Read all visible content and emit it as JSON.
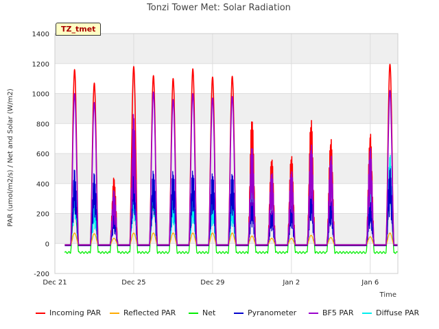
{
  "chart_data": {
    "type": "line",
    "title": "Tonzi Tower Met: Solar Radiation",
    "xlabel": "Time",
    "ylabel": "PAR (umol/m2/s) / Net and Solar (W/m2)",
    "ylim": [
      -200,
      1400
    ],
    "yticks": [
      -200,
      0,
      200,
      400,
      600,
      800,
      1000,
      1200,
      1400
    ],
    "xlim": [
      0,
      17.4
    ],
    "xticks": [
      {
        "x": 0,
        "label": "Dec 21"
      },
      {
        "x": 4,
        "label": "Dec 25"
      },
      {
        "x": 8,
        "label": "Dec 29"
      },
      {
        "x": 12,
        "label": "Jan 2"
      },
      {
        "x": 16,
        "label": "Jan 6"
      }
    ],
    "tag": "TZ_tmet",
    "day_offset": 0.5,
    "days": [
      {
        "day": 0,
        "incoming": 1160,
        "reflected": 70,
        "net": 230,
        "pyranometer": 500,
        "bf5": 1000,
        "diffuse": 410
      },
      {
        "day": 1,
        "incoming": 1070,
        "reflected": 65,
        "net": 250,
        "pyranometer": 475,
        "bf5": 940,
        "diffuse": 260
      },
      {
        "day": 2,
        "incoming": 445,
        "reflected": 35,
        "net": 170,
        "pyranometer": 200,
        "bf5": 360,
        "diffuse": 360
      },
      {
        "day": 3,
        "incoming": 1180,
        "reflected": 70,
        "net": 300,
        "pyranometer": 520,
        "bf5": 880,
        "diffuse": 400
      },
      {
        "day": 4,
        "incoming": 1120,
        "reflected": 70,
        "net": 260,
        "pyranometer": 495,
        "bf5": 1010,
        "diffuse": 450
      },
      {
        "day": 5,
        "incoming": 1100,
        "reflected": 70,
        "net": 275,
        "pyranometer": 495,
        "bf5": 960,
        "diffuse": 300
      },
      {
        "day": 6,
        "incoming": 1165,
        "reflected": 70,
        "net": 280,
        "pyranometer": 500,
        "bf5": 1000,
        "diffuse": 310
      },
      {
        "day": 7,
        "incoming": 1110,
        "reflected": 70,
        "net": 275,
        "pyranometer": 485,
        "bf5": 970,
        "diffuse": 290
      },
      {
        "day": 8,
        "incoming": 1115,
        "reflected": 70,
        "net": 280,
        "pyranometer": 485,
        "bf5": 980,
        "diffuse": 290
      },
      {
        "day": 9,
        "incoming": 860,
        "reflected": 50,
        "net": 250,
        "pyranometer": 310,
        "bf5": 670,
        "diffuse": 490
      },
      {
        "day": 10,
        "incoming": 585,
        "reflected": 35,
        "net": 200,
        "pyranometer": 230,
        "bf5": 490,
        "diffuse": 460
      },
      {
        "day": 11,
        "incoming": 605,
        "reflected": 35,
        "net": 180,
        "pyranometer": 260,
        "bf5": 500,
        "diffuse": 430
      },
      {
        "day": 12,
        "incoming": 850,
        "reflected": 55,
        "net": 270,
        "pyranometer": 360,
        "bf5": 680,
        "diffuse": 580
      },
      {
        "day": 13,
        "incoming": 715,
        "reflected": 40,
        "net": 220,
        "pyranometer": 290,
        "bf5": 600,
        "diffuse": 520
      },
      {
        "day": 15,
        "incoming": 745,
        "reflected": 45,
        "net": 240,
        "pyranometer": 280,
        "bf5": 650,
        "diffuse": 435
      },
      {
        "day": 16,
        "incoming": 1195,
        "reflected": 70,
        "net": 290,
        "pyranometer": 510,
        "bf5": 1020,
        "diffuse": 600
      }
    ],
    "night_base": {
      "incoming": -10,
      "reflected": -8,
      "net": -60,
      "pyranometer": -15,
      "bf5": -8,
      "diffuse": -8
    },
    "series": [
      {
        "name": "Incoming PAR",
        "key": "incoming",
        "color": "#ff0000"
      },
      {
        "name": "Reflected PAR",
        "key": "reflected",
        "color": "#ffaa00"
      },
      {
        "name": "Net",
        "key": "net",
        "color": "#00ee00"
      },
      {
        "name": "Pyranometer",
        "key": "pyranometer",
        "color": "#0000cc"
      },
      {
        "name": "BF5 PAR",
        "key": "bf5",
        "color": "#9900cc"
      },
      {
        "name": "Diffuse PAR",
        "key": "diffuse",
        "color": "#00eeee"
      }
    ]
  }
}
